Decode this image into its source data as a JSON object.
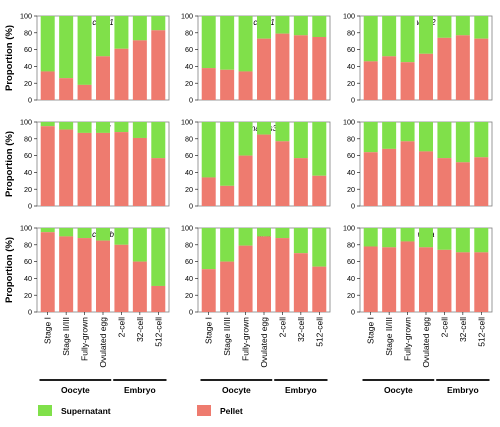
{
  "figure": {
    "ylabel": "Proportion (%)",
    "categories": [
      "Stage I",
      "Stage II/III",
      "Fully-grown",
      "Ovulated egg",
      "2-cell",
      "32-cell",
      "512-cell"
    ],
    "groups": [
      {
        "name": "Oocyte",
        "span": [
          0,
          3
        ]
      },
      {
        "name": "Embryo",
        "span": [
          4,
          6
        ]
      }
    ],
    "legend": [
      {
        "name": "Supernatant",
        "color": "#80e04a"
      },
      {
        "name": "Pellet",
        "color": "#ee7b6f"
      }
    ],
    "colors": {
      "supernatant": "#80e04a",
      "pellet": "#ee7b6f"
    }
  },
  "chart_data": [
    {
      "type": "bar",
      "title": "ccna1",
      "stacked": true,
      "ylim": [
        0,
        100
      ],
      "yticks": [
        0,
        20,
        40,
        60,
        80,
        100
      ],
      "series": [
        {
          "name": "Pellet",
          "values": [
            34,
            26,
            18,
            52,
            61,
            71,
            83
          ]
        },
        {
          "name": "Supernatant",
          "values": [
            66,
            74,
            82,
            48,
            39,
            29,
            17
          ]
        }
      ]
    },
    {
      "type": "bar",
      "title": "ccnb1",
      "stacked": true,
      "ylim": [
        0,
        100
      ],
      "yticks": [
        0,
        20,
        40,
        60,
        80,
        100
      ],
      "series": [
        {
          "name": "Pellet",
          "values": [
            38,
            36,
            34,
            73,
            79,
            77,
            75
          ]
        },
        {
          "name": "Supernatant",
          "values": [
            62,
            64,
            66,
            27,
            21,
            23,
            25
          ]
        }
      ]
    },
    {
      "type": "bar",
      "title": "wee2",
      "stacked": true,
      "ylim": [
        0,
        100
      ],
      "yticks": [
        0,
        20,
        40,
        60,
        80,
        100
      ],
      "series": [
        {
          "name": "Pellet",
          "values": [
            46,
            52,
            45,
            55,
            74,
            77,
            73
          ]
        },
        {
          "name": "Supernatant",
          "values": [
            54,
            48,
            55,
            45,
            26,
            23,
            27
          ]
        }
      ]
    },
    {
      "type": "bar",
      "title": "dazl",
      "stacked": true,
      "ylim": [
        0,
        100
      ],
      "yticks": [
        0,
        20,
        40,
        60,
        80,
        100
      ],
      "series": [
        {
          "name": "Pellet",
          "values": [
            95,
            91,
            87,
            87,
            88,
            81,
            57
          ]
        },
        {
          "name": "Supernatant",
          "values": [
            5,
            9,
            13,
            13,
            12,
            19,
            43
          ]
        }
      ]
    },
    {
      "type": "bar",
      "title": "nanos3",
      "stacked": true,
      "ylim": [
        0,
        100
      ],
      "yticks": [
        0,
        20,
        40,
        60,
        80,
        100
      ],
      "series": [
        {
          "name": "Pellet",
          "values": [
            34,
            24,
            60,
            85,
            77,
            57,
            36
          ]
        },
        {
          "name": "Supernatant",
          "values": [
            66,
            76,
            40,
            15,
            23,
            43,
            64
          ]
        }
      ]
    },
    {
      "type": "bar",
      "title": "gra",
      "stacked": true,
      "ylim": [
        0,
        100
      ],
      "yticks": [
        0,
        20,
        40,
        60,
        80,
        100
      ],
      "series": [
        {
          "name": "Pellet",
          "values": [
            64,
            68,
            77,
            65,
            57,
            52,
            58
          ]
        },
        {
          "name": "Supernatant",
          "values": [
            36,
            32,
            23,
            35,
            43,
            48,
            42
          ]
        }
      ]
    },
    {
      "type": "bar",
      "title": "ca15b",
      "stacked": true,
      "ylim": [
        0,
        100
      ],
      "yticks": [
        0,
        20,
        40,
        60,
        80,
        100
      ],
      "series": [
        {
          "name": "Pellet",
          "values": [
            95,
            90,
            88,
            85,
            80,
            60,
            31
          ]
        },
        {
          "name": "Supernatant",
          "values": [
            5,
            10,
            12,
            15,
            20,
            40,
            69
          ]
        }
      ]
    },
    {
      "type": "bar",
      "title": "dnd",
      "stacked": true,
      "ylim": [
        0,
        100
      ],
      "yticks": [
        0,
        20,
        40,
        60,
        80,
        100
      ],
      "series": [
        {
          "name": "Pellet",
          "values": [
            51,
            60,
            79,
            90,
            88,
            70,
            54
          ]
        },
        {
          "name": "Supernatant",
          "values": [
            49,
            40,
            21,
            10,
            12,
            30,
            46
          ]
        }
      ]
    },
    {
      "type": "bar",
      "title": "vasa",
      "stacked": true,
      "ylim": [
        0,
        100
      ],
      "yticks": [
        0,
        20,
        40,
        60,
        80,
        100
      ],
      "series": [
        {
          "name": "Pellet",
          "values": [
            78,
            77,
            84,
            77,
            74,
            71,
            71
          ]
        },
        {
          "name": "Supernatant",
          "values": [
            22,
            23,
            16,
            23,
            26,
            29,
            29
          ]
        }
      ]
    }
  ]
}
